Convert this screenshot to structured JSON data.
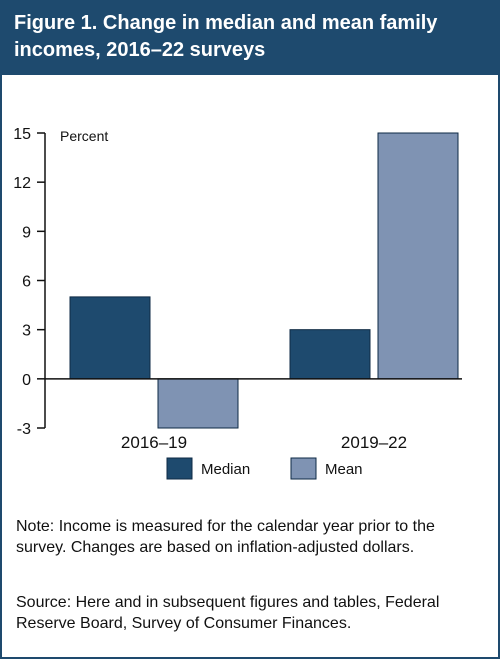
{
  "figure": {
    "title": "Figure 1. Change in median and mean family incomes, 2016–22 surveys",
    "note": "Note: Income is measured for the calendar year prior to the survey. Changes are based on inflation-adjusted dollars.",
    "source": "Source: Here and in subsequent figures and tables, Federal Reserve Board, Survey of Consumer Finances."
  },
  "colors": {
    "header": "#1e4a6e",
    "median": "#1e4a6e",
    "mean": "#7f93b3"
  },
  "chart_data": {
    "type": "bar",
    "title": "Figure 1. Change in median and mean family incomes, 2016–22 surveys",
    "categories": [
      "2016–19",
      "2019–22"
    ],
    "series": [
      {
        "name": "Median",
        "values": [
          5,
          3
        ]
      },
      {
        "name": "Mean",
        "values": [
          -3,
          15
        ]
      }
    ],
    "ylabel": "Percent",
    "ylim": [
      -3,
      15
    ],
    "yticks": [
      "15",
      "12",
      "9",
      "6",
      "3",
      "0",
      "-3"
    ],
    "legend": "bottom",
    "grid": false
  }
}
